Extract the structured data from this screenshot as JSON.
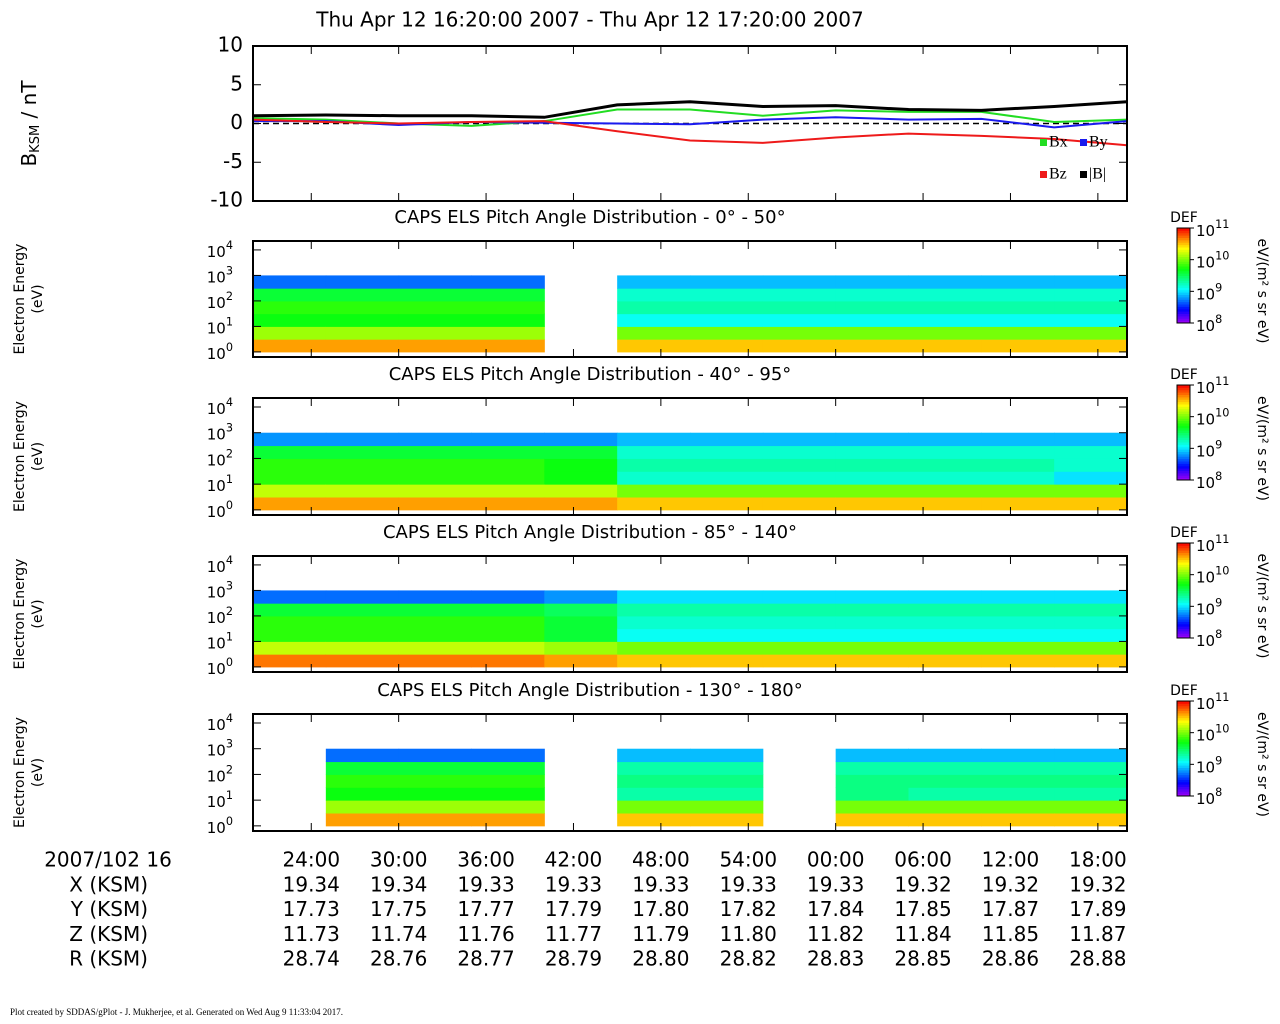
{
  "title": "Thu Apr 12 16:20:00 2007 - Thu Apr 12 17:20:00 2007",
  "time_axis": {
    "xlim": [
      20,
      80
    ],
    "xticks": [
      {
        "value": 24,
        "label": "24:00"
      },
      {
        "value": 30,
        "label": "30:00"
      },
      {
        "value": 36,
        "label": "36:00"
      },
      {
        "value": 42,
        "label": "42:00"
      },
      {
        "value": 48,
        "label": "48:00"
      },
      {
        "value": 54,
        "label": "54:00"
      },
      {
        "value": 60,
        "label": "00:00"
      },
      {
        "value": 66,
        "label": "06:00"
      },
      {
        "value": 72,
        "label": "12:00"
      },
      {
        "value": 78,
        "label": "18:00"
      }
    ]
  },
  "chart_data": [
    {
      "type": "line",
      "ylabel": {
        "main": "B",
        "sub": "KSM",
        "rest": " / nT"
      },
      "ylim": [
        -10,
        10
      ],
      "yticks": [
        {
          "value": -10,
          "label": "-10"
        },
        {
          "value": -5,
          "label": "-5"
        },
        0,
        5,
        10
      ],
      "x": [
        20,
        25,
        30,
        35,
        40,
        45,
        50,
        55,
        60,
        65,
        70,
        75,
        80
      ],
      "series": [
        {
          "name": "Bx",
          "color": "#22dd22",
          "values": [
            0.7,
            0.5,
            0.0,
            -0.3,
            0.3,
            1.8,
            1.8,
            1.0,
            1.7,
            1.5,
            1.5,
            0.2,
            0.5
          ]
        },
        {
          "name": "By",
          "color": "#1a1aee",
          "values": [
            0.3,
            0.3,
            -0.2,
            0.2,
            0.1,
            0.0,
            -0.1,
            0.5,
            0.8,
            0.5,
            0.6,
            -0.5,
            0.3
          ]
        },
        {
          "name": "Bz",
          "color": "#ee1a1a",
          "values": [
            0.5,
            0.2,
            0.0,
            0.2,
            0.3,
            -1.0,
            -2.2,
            -2.5,
            -1.8,
            -1.3,
            -1.6,
            -2.0,
            -2.8
          ]
        },
        {
          "name": "|B|",
          "color": "#000000",
          "values": [
            1.0,
            1.1,
            1.0,
            1.0,
            0.8,
            2.4,
            2.8,
            2.2,
            2.3,
            1.8,
            1.7,
            2.2,
            2.8
          ]
        }
      ]
    },
    {
      "type": "heatmap",
      "title": "CAPS ELS Pitch Angle Distribution - 0° - 50°",
      "ylabel": [
        "Electron Energy",
        "(eV)"
      ],
      "ylim": [
        -0.2,
        4.35
      ],
      "yticks": [
        {
          "value": 0,
          "label": "10",
          "exp": "0"
        },
        {
          "value": 1,
          "label": "10",
          "exp": "1"
        },
        {
          "value": 2,
          "label": "10",
          "exp": "2"
        },
        {
          "value": 3,
          "label": "10",
          "exp": "3"
        },
        {
          "value": 4,
          "label": "10",
          "exp": "4"
        }
      ],
      "clabel": "DEF",
      "cunit": "eV/(m² s sr eV)",
      "clim": [
        8,
        11
      ],
      "cticks": [
        {
          "value": 8,
          "label": "10",
          "exp": "8"
        },
        {
          "value": 9,
          "label": "10",
          "exp": "9"
        },
        {
          "value": 10,
          "label": "10",
          "exp": "10"
        },
        {
          "value": 11,
          "label": "10",
          "exp": "11"
        }
      ],
      "time_bins": [
        20,
        25,
        30,
        35,
        40,
        45,
        50,
        55,
        60,
        65,
        70,
        75,
        80
      ],
      "energy_bins": [
        0,
        0.5,
        1,
        1.5,
        2,
        2.5,
        3
      ],
      "z": [
        [
          10.6,
          10.1,
          9.7,
          9.8,
          9.6,
          8.7
        ],
        [
          10.6,
          10.1,
          9.7,
          9.8,
          9.6,
          8.7
        ],
        [
          10.6,
          10.1,
          9.7,
          9.8,
          9.6,
          8.7
        ],
        [
          10.6,
          10.1,
          9.7,
          9.8,
          9.6,
          8.7
        ],
        [
          null,
          null,
          null,
          null,
          null,
          null
        ],
        [
          10.5,
          10.0,
          9.1,
          9.3,
          9.2,
          8.9
        ],
        [
          10.5,
          10.0,
          9.1,
          9.3,
          9.2,
          8.9
        ],
        [
          10.5,
          10.0,
          9.1,
          9.3,
          9.2,
          8.9
        ],
        [
          10.5,
          10.0,
          9.1,
          9.3,
          9.2,
          8.9
        ],
        [
          10.5,
          10.0,
          9.1,
          9.3,
          9.2,
          8.9
        ],
        [
          10.5,
          10.0,
          9.1,
          9.3,
          9.2,
          8.9
        ],
        [
          10.5,
          10.0,
          9.1,
          9.3,
          9.2,
          8.9
        ]
      ]
    },
    {
      "type": "heatmap",
      "title": "CAPS ELS Pitch Angle Distribution - 40° - 95°",
      "ylabel": [
        "Electron Energy",
        "(eV)"
      ],
      "ylim": [
        -0.2,
        4.35
      ],
      "yticks": [
        {
          "value": 0,
          "label": "10",
          "exp": "0"
        },
        {
          "value": 1,
          "label": "10",
          "exp": "1"
        },
        {
          "value": 2,
          "label": "10",
          "exp": "2"
        },
        {
          "value": 3,
          "label": "10",
          "exp": "3"
        },
        {
          "value": 4,
          "label": "10",
          "exp": "4"
        }
      ],
      "clabel": "DEF",
      "cunit": "eV/(m² s sr eV)",
      "clim": [
        8,
        11
      ],
      "cticks": [
        {
          "value": 8,
          "label": "10",
          "exp": "8"
        },
        {
          "value": 9,
          "label": "10",
          "exp": "9"
        },
        {
          "value": 10,
          "label": "10",
          "exp": "10"
        },
        {
          "value": 11,
          "label": "10",
          "exp": "11"
        }
      ],
      "time_bins": [
        20,
        25,
        30,
        35,
        40,
        45,
        50,
        55,
        60,
        65,
        70,
        75,
        80
      ],
      "energy_bins": [
        0,
        0.5,
        1,
        1.5,
        2,
        2.5,
        3
      ],
      "z": [
        [
          10.6,
          10.2,
          9.8,
          9.8,
          9.6,
          8.8
        ],
        [
          10.6,
          10.2,
          9.8,
          9.8,
          9.6,
          8.8
        ],
        [
          10.6,
          10.2,
          9.8,
          9.8,
          9.6,
          8.8
        ],
        [
          10.6,
          10.2,
          9.8,
          9.8,
          9.6,
          8.8
        ],
        [
          10.6,
          10.2,
          9.7,
          9.7,
          9.6,
          8.8
        ],
        [
          10.5,
          10.0,
          9.2,
          9.3,
          9.2,
          8.9
        ],
        [
          10.5,
          10.0,
          9.2,
          9.3,
          9.2,
          8.9
        ],
        [
          10.5,
          10.0,
          9.2,
          9.3,
          9.2,
          8.9
        ],
        [
          10.5,
          10.0,
          9.2,
          9.3,
          9.2,
          8.9
        ],
        [
          10.5,
          10.0,
          9.2,
          9.3,
          9.2,
          8.9
        ],
        [
          10.5,
          10.0,
          9.2,
          9.3,
          9.2,
          8.9
        ],
        [
          10.5,
          10.0,
          9.0,
          9.2,
          9.2,
          8.9
        ]
      ]
    },
    {
      "type": "heatmap",
      "title": "CAPS ELS Pitch Angle Distribution - 85° - 140°",
      "ylabel": [
        "Electron Energy",
        "(eV)"
      ],
      "ylim": [
        -0.2,
        4.35
      ],
      "yticks": [
        {
          "value": 0,
          "label": "10",
          "exp": "0"
        },
        {
          "value": 1,
          "label": "10",
          "exp": "1"
        },
        {
          "value": 2,
          "label": "10",
          "exp": "2"
        },
        {
          "value": 3,
          "label": "10",
          "exp": "3"
        },
        {
          "value": 4,
          "label": "10",
          "exp": "4"
        }
      ],
      "clabel": "DEF",
      "cunit": "eV/(m² s sr eV)",
      "clim": [
        8,
        11
      ],
      "cticks": [
        {
          "value": 8,
          "label": "10",
          "exp": "8"
        },
        {
          "value": 9,
          "label": "10",
          "exp": "9"
        },
        {
          "value": 10,
          "label": "10",
          "exp": "10"
        },
        {
          "value": 11,
          "label": "10",
          "exp": "11"
        }
      ],
      "time_bins": [
        20,
        25,
        30,
        35,
        40,
        45,
        50,
        55,
        60,
        65,
        70,
        75,
        80
      ],
      "energy_bins": [
        0,
        0.5,
        1,
        1.5,
        2,
        2.5,
        3
      ],
      "z": [
        [
          10.7,
          10.2,
          9.8,
          9.8,
          9.6,
          8.7
        ],
        [
          10.7,
          10.2,
          9.8,
          9.8,
          9.6,
          8.7
        ],
        [
          10.7,
          10.2,
          9.8,
          9.8,
          9.6,
          8.7
        ],
        [
          10.7,
          10.2,
          9.8,
          9.8,
          9.6,
          8.7
        ],
        [
          10.6,
          10.1,
          9.6,
          9.6,
          9.5,
          8.8
        ],
        [
          10.5,
          10.0,
          9.1,
          9.2,
          9.3,
          9.0
        ],
        [
          10.5,
          10.0,
          9.1,
          9.2,
          9.3,
          9.0
        ],
        [
          10.5,
          10.0,
          9.1,
          9.2,
          9.3,
          9.0
        ],
        [
          10.5,
          10.0,
          9.1,
          9.2,
          9.3,
          9.0
        ],
        [
          10.5,
          10.0,
          9.1,
          9.2,
          9.3,
          9.0
        ],
        [
          10.5,
          10.0,
          9.1,
          9.2,
          9.3,
          9.0
        ],
        [
          10.5,
          10.0,
          9.1,
          9.2,
          9.3,
          9.0
        ]
      ]
    },
    {
      "type": "heatmap",
      "title": "CAPS ELS Pitch Angle Distribution - 130° - 180°",
      "ylabel": [
        "Electron Energy",
        "(eV)"
      ],
      "ylim": [
        -0.2,
        4.35
      ],
      "yticks": [
        {
          "value": 0,
          "label": "10",
          "exp": "0"
        },
        {
          "value": 1,
          "label": "10",
          "exp": "1"
        },
        {
          "value": 2,
          "label": "10",
          "exp": "2"
        },
        {
          "value": 3,
          "label": "10",
          "exp": "3"
        },
        {
          "value": 4,
          "label": "10",
          "exp": "4"
        }
      ],
      "clabel": "DEF",
      "cunit": "eV/(m² s sr eV)",
      "clim": [
        8,
        11
      ],
      "cticks": [
        {
          "value": 8,
          "label": "10",
          "exp": "8"
        },
        {
          "value": 9,
          "label": "10",
          "exp": "9"
        },
        {
          "value": 10,
          "label": "10",
          "exp": "10"
        },
        {
          "value": 11,
          "label": "10",
          "exp": "11"
        }
      ],
      "time_bins": [
        20,
        25,
        30,
        35,
        40,
        45,
        50,
        55,
        60,
        65,
        70,
        75,
        80
      ],
      "energy_bins": [
        0,
        0.5,
        1,
        1.5,
        2,
        2.5,
        3
      ],
      "z": [
        [
          null,
          null,
          null,
          null,
          null,
          null
        ],
        [
          10.6,
          10.1,
          9.7,
          9.8,
          9.6,
          8.7
        ],
        [
          10.6,
          10.1,
          9.7,
          9.8,
          9.6,
          8.7
        ],
        [
          10.6,
          10.1,
          9.7,
          9.8,
          9.6,
          8.7
        ],
        [
          null,
          null,
          null,
          null,
          null,
          null
        ],
        [
          10.5,
          10.0,
          9.3,
          9.4,
          9.3,
          8.9
        ],
        [
          10.5,
          10.0,
          9.3,
          9.4,
          9.3,
          8.9
        ],
        [
          null,
          null,
          null,
          null,
          null,
          null
        ],
        [
          10.5,
          10.0,
          9.4,
          9.4,
          9.3,
          8.9
        ],
        [
          10.5,
          10.0,
          9.3,
          9.4,
          9.3,
          8.9
        ],
        [
          10.5,
          10.0,
          9.3,
          9.4,
          9.3,
          8.9
        ],
        [
          10.5,
          10.0,
          9.3,
          9.4,
          9.3,
          8.9
        ]
      ]
    }
  ],
  "ephemeris": {
    "date_label": "2007/102 16",
    "rows": [
      {
        "label": "X (KSM)",
        "values": [
          "19.34",
          "19.34",
          "19.33",
          "19.33",
          "19.33",
          "19.33",
          "19.33",
          "19.32",
          "19.32",
          "19.32"
        ]
      },
      {
        "label": "Y (KSM)",
        "values": [
          "17.73",
          "17.75",
          "17.77",
          "17.79",
          "17.80",
          "17.82",
          "17.84",
          "17.85",
          "17.87",
          "17.89"
        ]
      },
      {
        "label": "Z (KSM)",
        "values": [
          "11.73",
          "11.74",
          "11.76",
          "11.77",
          "11.79",
          "11.80",
          "11.82",
          "11.84",
          "11.85",
          "11.87"
        ]
      },
      {
        "label": "R (KSM)",
        "values": [
          "28.74",
          "28.76",
          "28.77",
          "28.79",
          "28.80",
          "28.82",
          "28.83",
          "28.85",
          "28.86",
          "28.88"
        ]
      }
    ]
  },
  "footer": "Plot created by SDDAS/gPlot - J. Mukherjee, et al.  Generated on Wed Aug 9 11:33:04 2017."
}
